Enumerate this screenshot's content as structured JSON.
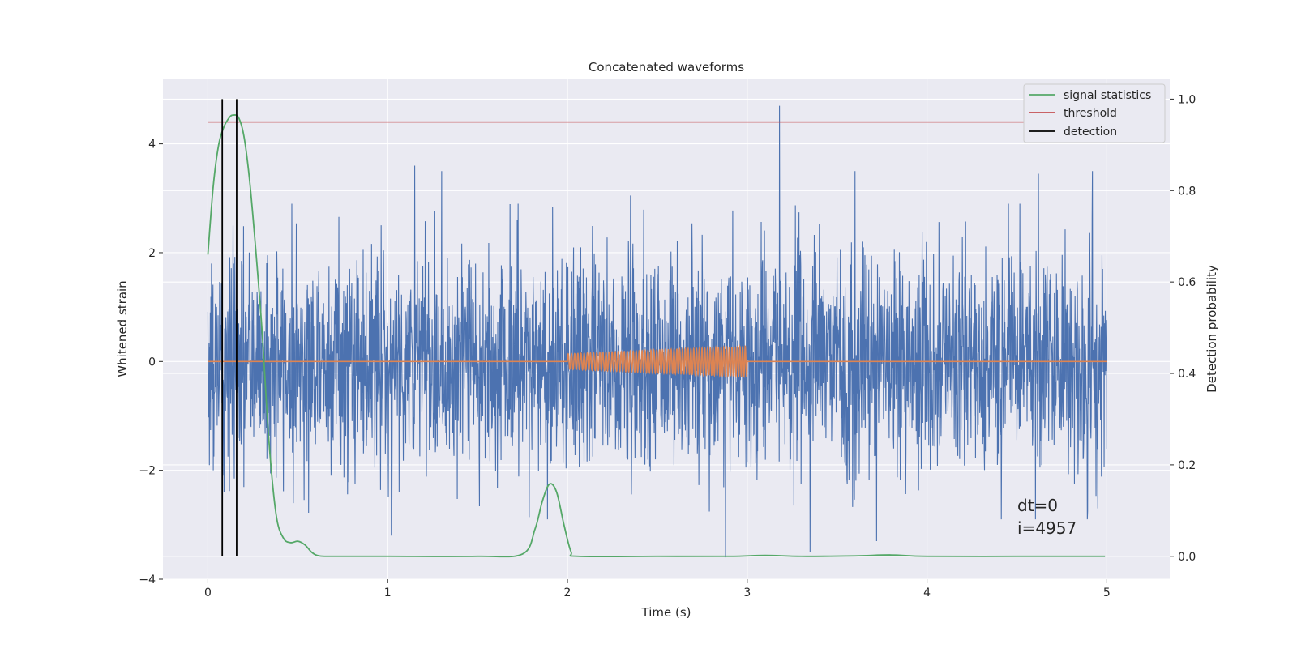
{
  "chart_data": {
    "type": "line",
    "title": "Concatenated waveforms",
    "xlabel": "Time (s)",
    "ylabel": "Whitened strain",
    "y2label": "Detection probability",
    "xlim": [
      -0.25,
      5.35
    ],
    "ylim": [
      -4.0,
      5.2
    ],
    "y2lim": [
      -0.05,
      1.045
    ],
    "xticks": [
      0,
      1,
      2,
      3,
      4,
      5
    ],
    "yticks": [
      -4,
      -2,
      0,
      2,
      4
    ],
    "y2ticks": [
      0.0,
      0.2,
      0.4,
      0.6,
      0.8,
      1.0
    ],
    "xtick_labels": [
      "0",
      "1",
      "2",
      "3",
      "4",
      "5"
    ],
    "ytick_labels": [
      "−4",
      "−2",
      "0",
      "2",
      "4"
    ],
    "y2tick_labels": [
      "0.0",
      "0.2",
      "0.4",
      "0.6",
      "0.8",
      "1.0"
    ],
    "grid": true,
    "legend_position": "top-right",
    "series": [
      {
        "key": "strain",
        "color": "#4c72b0",
        "axis": "left",
        "kind": "noise",
        "x_range": [
          0,
          5
        ],
        "approx_amplitude": 1.2,
        "peaks": [
          {
            "x": 0.02,
            "y": 1.8
          },
          {
            "x": 0.08,
            "y": 2.6
          },
          {
            "x": 0.14,
            "y": 2.5
          },
          {
            "x": 0.03,
            "y": -2.0
          },
          {
            "x": 0.09,
            "y": -2.4
          },
          {
            "x": 1.15,
            "y": 3.6
          },
          {
            "x": 1.3,
            "y": 3.5
          },
          {
            "x": 1.02,
            "y": -3.2
          },
          {
            "x": 2.35,
            "y": 3.05
          },
          {
            "x": 3.18,
            "y": 4.7
          },
          {
            "x": 2.88,
            "y": -3.6
          },
          {
            "x": 3.35,
            "y": -3.5
          },
          {
            "x": 3.6,
            "y": 3.5
          },
          {
            "x": 3.72,
            "y": -3.3
          },
          {
            "x": 4.62,
            "y": 3.45
          },
          {
            "x": 4.92,
            "y": 3.5
          },
          {
            "x": 4.95,
            "y": -2.7
          }
        ]
      },
      {
        "key": "injected",
        "color": "#dd8452",
        "axis": "left",
        "kind": "chirp",
        "x_range": [
          0,
          5
        ],
        "active_range": [
          2.0,
          3.0
        ],
        "amplitude_start": 0.14,
        "amplitude_end": 0.28
      },
      {
        "name": "signal statistics",
        "color": "#55a868",
        "axis": "right",
        "x": [
          0.0,
          0.03,
          0.06,
          0.09,
          0.12,
          0.14,
          0.17,
          0.2,
          0.23,
          0.26,
          0.3,
          0.34,
          0.38,
          0.42,
          0.46,
          0.5,
          0.54,
          0.58,
          0.62,
          0.7,
          1.0,
          1.5,
          1.75,
          1.82,
          1.86,
          1.9,
          1.94,
          1.98,
          2.02,
          2.06,
          2.5,
          2.9,
          3.1,
          3.3,
          3.6,
          3.8,
          4.0,
          4.5,
          4.99
        ],
        "y": [
          0.66,
          0.81,
          0.9,
          0.94,
          0.96,
          0.965,
          0.96,
          0.92,
          0.83,
          0.7,
          0.5,
          0.25,
          0.09,
          0.04,
          0.03,
          0.033,
          0.025,
          0.008,
          0.001,
          0.0,
          0.0,
          0.0,
          0.005,
          0.06,
          0.12,
          0.158,
          0.14,
          0.07,
          0.01,
          0.0,
          0.0,
          0.0,
          0.002,
          0.0,
          0.001,
          0.003,
          0.0,
          0.0,
          0.0
        ]
      },
      {
        "name": "threshold",
        "color": "#c44e52",
        "axis": "right",
        "x": [
          -0.25,
          5.35
        ],
        "y": [
          0.95,
          0.95
        ]
      },
      {
        "name": "detection",
        "color": "#000000",
        "axis": "right",
        "kind": "vlines",
        "x": [
          0.08,
          0.16
        ],
        "y_range": [
          0.0,
          1.0
        ]
      }
    ],
    "annotations": [
      "dt=0",
      "i=4957"
    ]
  },
  "colors": {
    "axes_bg": "#eaeaf2",
    "grid": "#ffffff",
    "text": "#262626"
  }
}
